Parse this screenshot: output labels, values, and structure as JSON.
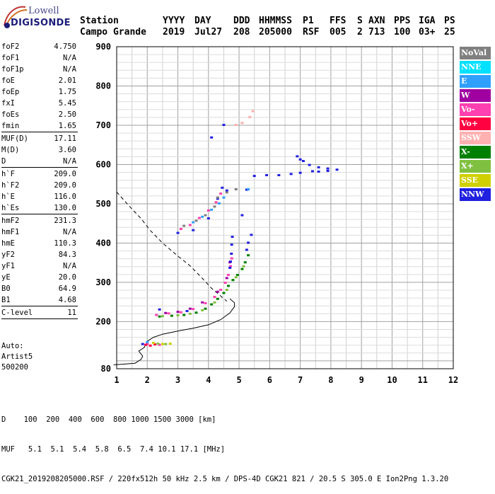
{
  "logo": {
    "line1": "Lowell",
    "line2": "DIGISONDE"
  },
  "header": {
    "row1": [
      "Station",
      "YYYY",
      "DAY",
      "DDD",
      "HHMMSS",
      "P1",
      "FFS",
      "S",
      "AXN",
      "PPS",
      "IGA",
      "PS"
    ],
    "row2": [
      "Campo Grande",
      "2019",
      "Jul27",
      "208",
      "205000",
      "RSF",
      "005",
      "2",
      "713",
      "100",
      "03+",
      "25"
    ]
  },
  "params": [
    {
      "k": "foF2",
      "v": "4.750"
    },
    {
      "k": "foF1",
      "v": "N/A"
    },
    {
      "k": "foF1p",
      "v": "N/A"
    },
    {
      "k": "foE",
      "v": "2.01"
    },
    {
      "k": "foEp",
      "v": "1.75"
    },
    {
      "k": "fxI",
      "v": "5.45"
    },
    {
      "k": "foEs",
      "v": "2.50"
    },
    {
      "k": "fmin",
      "v": "1.65"
    },
    {
      "sep": true
    },
    {
      "k": "MUF(D)",
      "v": "17.11"
    },
    {
      "k": "M(D)",
      "v": "3.60"
    },
    {
      "k": "D",
      "v": "N/A"
    },
    {
      "sep": true
    },
    {
      "k": "h`F",
      "v": "209.0"
    },
    {
      "k": "h`F2",
      "v": "209.0"
    },
    {
      "k": "h`E",
      "v": "116.0"
    },
    {
      "k": "h`Es",
      "v": "130.0"
    },
    {
      "sep": true
    },
    {
      "k": "hmF2",
      "v": "231.3"
    },
    {
      "k": "hmF1",
      "v": "N/A"
    },
    {
      "k": "hmE",
      "v": "110.3"
    },
    {
      "k": "yF2",
      "v": "84.3"
    },
    {
      "k": "yF1",
      "v": "N/A"
    },
    {
      "k": "yE",
      "v": "20.0"
    },
    {
      "k": "B0",
      "v": "64.9"
    },
    {
      "k": "B1",
      "v": "4.68"
    },
    {
      "sep": true
    },
    {
      "k": "C-level",
      "v": "11"
    },
    {
      "sep": true
    }
  ],
  "auto": {
    "line1": "Auto:",
    "line2": "Artist5",
    "line3": "500200"
  },
  "footer": {
    "d_row": "D    100  200  400  600  800 1000 1500 3000 [km]",
    "muf_row": "MUF   5.1  5.1  5.4  5.8  6.5  7.4 10.1 17.1 [MHz]",
    "file_row": "CGK21_2019208205000.RSF / 220fx512h 50 kHz 2.5 km / DPS-4D CGK21 821 / 20.5 S 305.0 E Ion2Png 1.3.20"
  },
  "legend": [
    {
      "label": "NoVal",
      "color": "#808080"
    },
    {
      "label": "NNE",
      "color": "#00e0ff"
    },
    {
      "label": "E",
      "color": "#30a0ff"
    },
    {
      "label": "W",
      "color": "#a000a0"
    },
    {
      "label": "Vo-",
      "color": "#ff40b0"
    },
    {
      "label": "Vo+",
      "color": "#ff0040"
    },
    {
      "label": "SSW",
      "color": "#ffb0b0"
    },
    {
      "label": "X-",
      "color": "#008000"
    },
    {
      "label": "X+",
      "color": "#80c040"
    },
    {
      "label": "SSE",
      "color": "#d0d000"
    },
    {
      "label": "NNW",
      "color": "#2020e0"
    }
  ],
  "chart_data": {
    "type": "scatter",
    "xlim": [
      1,
      12
    ],
    "ylim": [
      80,
      900
    ],
    "xticks": [
      1,
      2,
      3,
      4,
      5,
      6,
      7,
      8,
      9,
      10,
      11,
      12
    ],
    "yticks": [
      80,
      200,
      300,
      400,
      500,
      600,
      700,
      800,
      900
    ],
    "xminor_step": 0.5,
    "ygrid_step": 20,
    "grid": true,
    "legend_position": "right",
    "series": [
      {
        "color": "#008000",
        "points": [
          [
            2.4,
            212
          ],
          [
            2.8,
            214
          ],
          [
            3.2,
            216
          ],
          [
            3.6,
            222
          ],
          [
            3.9,
            232
          ],
          [
            4.1,
            243
          ],
          [
            4.3,
            257
          ],
          [
            4.5,
            272
          ],
          [
            4.65,
            290
          ],
          [
            4.8,
            305
          ],
          [
            4.95,
            318
          ],
          [
            5.1,
            333
          ],
          [
            5.2,
            350
          ],
          [
            5.3,
            368
          ]
        ]
      },
      {
        "color": "#80c040",
        "points": [
          [
            2.5,
            213
          ],
          [
            3.0,
            215
          ],
          [
            3.4,
            219
          ],
          [
            3.8,
            228
          ],
          [
            4.2,
            248
          ],
          [
            4.6,
            280
          ],
          [
            4.9,
            312
          ],
          [
            5.15,
            340
          ]
        ]
      },
      {
        "color": "#ff40b0",
        "points": [
          [
            2.3,
            216
          ],
          [
            2.7,
            220
          ],
          [
            3.1,
            223
          ],
          [
            3.5,
            231
          ],
          [
            3.9,
            246
          ],
          [
            4.2,
            262
          ],
          [
            4.4,
            280
          ],
          [
            4.55,
            298
          ],
          [
            4.65,
            318
          ],
          [
            4.72,
            340
          ],
          [
            4.76,
            360
          ]
        ]
      },
      {
        "color": "#a000a0",
        "points": [
          [
            2.6,
            221
          ],
          [
            3.0,
            224
          ],
          [
            3.4,
            232
          ],
          [
            3.8,
            248
          ],
          [
            4.3,
            275
          ],
          [
            4.6,
            310
          ],
          [
            4.7,
            350
          ]
        ]
      },
      {
        "color": "#2020e0",
        "points": [
          [
            2.4,
            230
          ],
          [
            3.3,
            226
          ],
          [
            4.7,
            336
          ],
          [
            4.72,
            352
          ],
          [
            4.75,
            372
          ],
          [
            4.76,
            395
          ],
          [
            4.78,
            415
          ],
          [
            5.25,
            382
          ],
          [
            5.3,
            400
          ],
          [
            5.4,
            420
          ],
          [
            5.5,
            570
          ],
          [
            5.9,
            572
          ],
          [
            6.3,
            572
          ],
          [
            6.7,
            575
          ],
          [
            7.0,
            578
          ],
          [
            7.4,
            582
          ],
          [
            7.6,
            581
          ],
          [
            7.9,
            583
          ],
          [
            8.2,
            586
          ],
          [
            6.9,
            620
          ],
          [
            7.1,
            608
          ],
          [
            7.3,
            598
          ],
          [
            7.6,
            592
          ],
          [
            7.9,
            589
          ],
          [
            7.0,
            612
          ],
          [
            4.0,
            462
          ],
          [
            4.3,
            512
          ],
          [
            4.45,
            540
          ],
          [
            4.6,
            533
          ],
          [
            5.1,
            470
          ],
          [
            5.25,
            535
          ],
          [
            1.85,
            142
          ],
          [
            3.0,
            425
          ],
          [
            3.5,
            432
          ],
          [
            4.1,
            668
          ],
          [
            4.5,
            700
          ]
        ]
      },
      {
        "color": "#ff40b0",
        "points": [
          [
            3.1,
            435
          ],
          [
            3.4,
            445
          ],
          [
            3.7,
            463
          ],
          [
            4.0,
            482
          ],
          [
            4.25,
            503
          ],
          [
            4.4,
            525
          ],
          [
            2.0,
            142
          ],
          [
            2.4,
            140
          ]
        ]
      },
      {
        "color": "#808080",
        "points": [
          [
            3.2,
            443
          ],
          [
            3.6,
            456
          ],
          [
            3.9,
            470
          ],
          [
            4.2,
            492
          ],
          [
            4.3,
            515
          ],
          [
            4.6,
            528
          ],
          [
            4.9,
            536
          ]
        ]
      },
      {
        "color": "#30a0ff",
        "points": [
          [
            3.5,
            452
          ],
          [
            3.8,
            466
          ],
          [
            4.1,
            484
          ],
          [
            4.35,
            500
          ],
          [
            4.5,
            515
          ],
          [
            2.0,
            147
          ],
          [
            5.3,
            536
          ]
        ]
      },
      {
        "color": "#ffb0b0",
        "points": [
          [
            5.1,
            705
          ],
          [
            5.35,
            720
          ],
          [
            5.45,
            735
          ],
          [
            4.9,
            700
          ]
        ]
      },
      {
        "color": "#ff0040",
        "points": [
          [
            1.95,
            140
          ],
          [
            2.1,
            138
          ],
          [
            2.25,
            141
          ]
        ]
      },
      {
        "color": "#d0d000",
        "points": [
          [
            2.2,
            145
          ],
          [
            2.5,
            142
          ],
          [
            2.75,
            143
          ]
        ]
      },
      {
        "color": "#80c040",
        "points": [
          [
            2.35,
            143
          ],
          [
            2.6,
            142
          ]
        ]
      }
    ],
    "solid_curve": [
      [
        0.9,
        90
      ],
      [
        1.3,
        92
      ],
      [
        1.6,
        94
      ],
      [
        1.8,
        104
      ],
      [
        1.85,
        112
      ],
      [
        1.72,
        125
      ],
      [
        1.9,
        134
      ],
      [
        2.0,
        150
      ],
      [
        2.2,
        160
      ],
      [
        2.5,
        168
      ],
      [
        3.0,
        176
      ],
      [
        3.5,
        183
      ],
      [
        4.0,
        192
      ],
      [
        4.4,
        205
      ],
      [
        4.7,
        222
      ],
      [
        4.85,
        238
      ],
      [
        4.85,
        248
      ],
      [
        4.7,
        258
      ]
    ],
    "dashed_curve": [
      [
        1.0,
        530
      ],
      [
        1.4,
        495
      ],
      [
        1.8,
        462
      ],
      [
        2.1,
        432
      ],
      [
        2.5,
        400
      ],
      [
        3.0,
        367
      ],
      [
        3.4,
        342
      ],
      [
        3.8,
        310
      ],
      [
        4.1,
        285
      ],
      [
        4.4,
        265
      ],
      [
        4.6,
        252
      ]
    ]
  }
}
